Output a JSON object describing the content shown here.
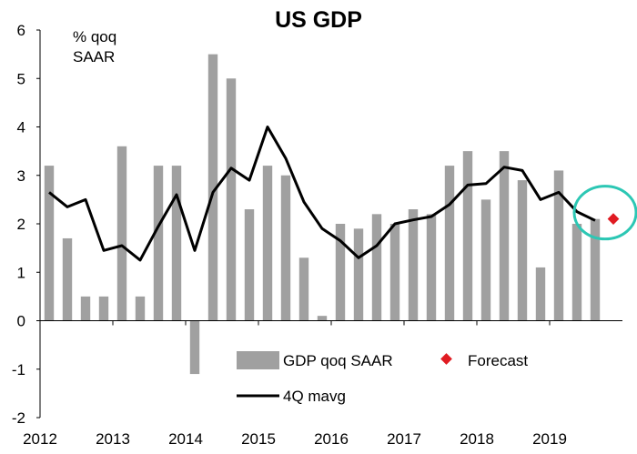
{
  "chart_data": {
    "type": "bar",
    "title": "US GDP",
    "unit_label": [
      "% qoq",
      "SAAR"
    ],
    "ylim": [
      -2,
      6
    ],
    "y_ticks": [
      6,
      5,
      4,
      3,
      2,
      1,
      0,
      -1,
      -2
    ],
    "x_tick_labels": [
      "2012",
      "2013",
      "2014",
      "2015",
      "2016",
      "2017",
      "2018",
      "2019"
    ],
    "legend_position": "bottom-right",
    "quarters": [
      "2012Q1",
      "2012Q2",
      "2012Q3",
      "2012Q4",
      "2013Q1",
      "2013Q2",
      "2013Q3",
      "2013Q4",
      "2014Q1",
      "2014Q2",
      "2014Q3",
      "2014Q4",
      "2015Q1",
      "2015Q2",
      "2015Q3",
      "2015Q4",
      "2016Q1",
      "2016Q2",
      "2016Q3",
      "2016Q4",
      "2017Q1",
      "2017Q2",
      "2017Q3",
      "2017Q4",
      "2018Q1",
      "2018Q2",
      "2018Q3",
      "2018Q4",
      "2019Q1",
      "2019Q2",
      "2019Q3",
      "2019Q4"
    ],
    "series": [
      {
        "name": "GDP qoq SAAR",
        "type": "bar",
        "color": "#a0a0a0",
        "values": [
          3.2,
          1.7,
          0.5,
          0.5,
          3.6,
          0.5,
          3.2,
          3.2,
          -1.1,
          5.5,
          5.0,
          2.3,
          3.2,
          3.0,
          1.3,
          0.1,
          2.0,
          1.9,
          2.2,
          2.0,
          2.3,
          2.2,
          3.2,
          3.5,
          2.5,
          3.5,
          2.9,
          1.1,
          3.1,
          2.0,
          2.1,
          null
        ]
      },
      {
        "name": "4Q mavg",
        "type": "line",
        "color": "#000000",
        "values": [
          2.65,
          2.35,
          2.5,
          1.45,
          1.55,
          1.25,
          1.95,
          2.6,
          1.45,
          2.65,
          3.15,
          2.9,
          4.0,
          3.35,
          2.45,
          1.9,
          1.65,
          1.3,
          1.55,
          2.0,
          2.08,
          2.15,
          2.4,
          2.8,
          2.83,
          3.17,
          3.1,
          2.5,
          2.65,
          2.25,
          2.07,
          null
        ]
      },
      {
        "name": "Forecast",
        "type": "scatter",
        "color": "#e01b22",
        "values": [
          null,
          null,
          null,
          null,
          null,
          null,
          null,
          null,
          null,
          null,
          null,
          null,
          null,
          null,
          null,
          null,
          null,
          null,
          null,
          null,
          null,
          null,
          null,
          null,
          null,
          null,
          null,
          null,
          null,
          null,
          null,
          2.1
        ]
      }
    ],
    "highlight_color": "#2cc7b4"
  }
}
